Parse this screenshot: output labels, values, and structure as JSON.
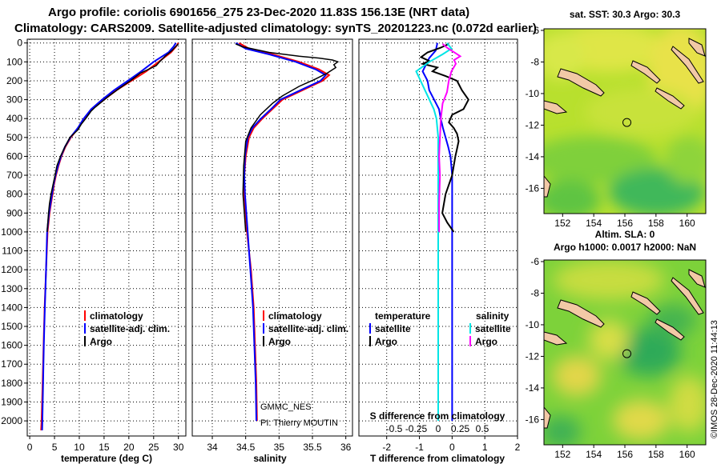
{
  "title_line1": "Argo profile: coriolis 6901656_275 23-Dec-2020 11.83S 156.13E (NRT data)",
  "title_line2": "Climatology: CARS2009. Satellite-adjusted climatology: synTS_20201223.nc (0.072d earlier)",
  "credit": "©IMOS 28-Dec-2020 11:44:13",
  "colors": {
    "climatology": "#ff0000",
    "satellite": "#0000ff",
    "argo": "#000000",
    "salinity_satellite": "#00e5e5",
    "salinity_argo": "#ff00ff"
  },
  "chart_data": [
    {
      "type": "line",
      "name": "temperature-profile",
      "xlabel": "temperature (deg C)",
      "ylabel": "depth",
      "xlim": [
        -0.5,
        31.5
      ],
      "ylim": [
        2080,
        -20
      ],
      "x_ticks": [
        0,
        5,
        10,
        15,
        20,
        25,
        30
      ],
      "x_tick_labels": [
        "0",
        "5",
        "10",
        "15",
        "20",
        "25",
        "30"
      ],
      "y_ticks": [
        0,
        100,
        200,
        300,
        400,
        500,
        600,
        700,
        800,
        900,
        1000,
        1100,
        1200,
        1300,
        1400,
        1500,
        1600,
        1700,
        1800,
        1900,
        2000
      ],
      "y_tick_labels": [
        "0",
        "100",
        "200",
        "300",
        "400",
        "500",
        "600",
        "700",
        "800",
        "900",
        "1000",
        "1100",
        "1200",
        "1300",
        "1400",
        "1500",
        "1600",
        "1700",
        "1800",
        "1900",
        "2000"
      ],
      "grid": true,
      "legend": [
        "climatology",
        "satellite-adj. clim.",
        "Argo"
      ],
      "series": [
        {
          "name": "climatology",
          "x": [
            30.0,
            29.5,
            28.5,
            26.0,
            23.5,
            20.5,
            17.5,
            15.0,
            12.6,
            11.0,
            9.8,
            8.3,
            7.2,
            6.4,
            5.8,
            5.3,
            4.9,
            4.6,
            4.3,
            4.0,
            3.8,
            3.6,
            3.3,
            3.0,
            2.8,
            2.6,
            2.4,
            2.3
          ],
          "y": [
            0,
            20,
            50,
            100,
            150,
            200,
            250,
            300,
            350,
            400,
            450,
            500,
            550,
            600,
            650,
            700,
            750,
            800,
            850,
            900,
            950,
            1000,
            1200,
            1400,
            1600,
            1800,
            2000,
            2050
          ]
        },
        {
          "name": "satellite-adj. clim.",
          "x": [
            29.5,
            29.0,
            28.0,
            25.0,
            22.5,
            19.8,
            17.0,
            14.6,
            12.4,
            10.9,
            9.7,
            8.2,
            7.1,
            6.3,
            5.7,
            5.2,
            4.8,
            4.5,
            4.2,
            3.9,
            3.7,
            3.5,
            3.3,
            3.05,
            2.85,
            2.7,
            2.55,
            2.5
          ],
          "y": [
            0,
            20,
            50,
            100,
            150,
            200,
            250,
            300,
            350,
            400,
            450,
            500,
            550,
            600,
            650,
            700,
            750,
            800,
            850,
            900,
            950,
            1000,
            1200,
            1400,
            1600,
            1800,
            2000,
            2050
          ]
        },
        {
          "name": "Argo",
          "x": [
            30.0,
            29.4,
            28.7,
            27.3,
            26.2,
            25.5,
            23.9,
            22.3,
            20.3,
            18.1,
            16.0,
            14.6,
            13.2,
            12.4,
            11.3,
            10.4,
            9.7,
            8.1,
            7.1,
            6.2,
            5.5,
            5.1,
            4.7,
            4.3,
            4.0,
            3.8,
            3.5
          ],
          "y": [
            5,
            20,
            40,
            70,
            100,
            120,
            140,
            160,
            200,
            240,
            280,
            310,
            340,
            360,
            400,
            430,
            460,
            500,
            550,
            600,
            650,
            700,
            750,
            800,
            850,
            900,
            1000
          ]
        }
      ]
    },
    {
      "type": "line",
      "name": "salinity-profile",
      "xlabel": "salinity",
      "ylabel": "depth",
      "xlim": [
        33.7,
        36.1
      ],
      "ylim": [
        2080,
        -20
      ],
      "x_ticks": [
        34,
        34.5,
        35,
        35.5,
        36
      ],
      "x_tick_labels": [
        "34",
        "34.5",
        "35",
        "35.5",
        "36"
      ],
      "grid": true,
      "legend": [
        "climatology",
        "satellite-adj. clim.",
        "Argo"
      ],
      "annotations": [
        "GMMC_NES",
        "PI: Thierry MOUTIN"
      ],
      "series": [
        {
          "name": "climatology",
          "x": [
            34.4,
            34.55,
            34.9,
            35.3,
            35.6,
            35.75,
            35.65,
            35.35,
            35.05,
            34.9,
            34.75,
            34.62,
            34.55,
            34.5,
            34.48,
            34.48,
            34.5,
            34.52,
            34.55,
            34.58,
            34.6,
            34.62,
            34.64,
            34.66,
            34.67
          ],
          "y": [
            0,
            30,
            60,
            100,
            140,
            170,
            200,
            250,
            300,
            350,
            400,
            450,
            500,
            600,
            700,
            800,
            900,
            1000,
            1100,
            1200,
            1300,
            1400,
            1600,
            1800,
            2000
          ]
        },
        {
          "name": "satellite-adj. clim.",
          "x": [
            34.35,
            34.5,
            34.85,
            35.25,
            35.55,
            35.7,
            35.62,
            35.32,
            35.02,
            34.88,
            34.73,
            34.6,
            34.53,
            34.49,
            34.48,
            34.49,
            34.51,
            34.53,
            34.55,
            34.57,
            34.59,
            34.61,
            34.63,
            34.65,
            34.66
          ],
          "y": [
            0,
            30,
            60,
            100,
            140,
            170,
            200,
            250,
            300,
            350,
            400,
            450,
            500,
            600,
            700,
            800,
            900,
            1000,
            1100,
            1200,
            1300,
            1400,
            1600,
            1800,
            2000
          ]
        },
        {
          "name": "Argo",
          "x": [
            34.35,
            34.45,
            34.85,
            35.3,
            35.6,
            35.8,
            35.88,
            35.82,
            35.85,
            35.72,
            35.55,
            35.3,
            35.05,
            34.9,
            34.72,
            34.58,
            34.5,
            34.47,
            34.46,
            34.5
          ],
          "y": [
            5,
            20,
            50,
            70,
            80,
            90,
            100,
            115,
            130,
            160,
            190,
            230,
            280,
            320,
            380,
            450,
            520,
            650,
            800,
            1000
          ]
        }
      ]
    },
    {
      "type": "line",
      "name": "difference-profile",
      "xlabel": "T difference from climatology",
      "xlabel_top": "S difference from climatology",
      "ylabel": "depth",
      "xlim": [
        -2.85,
        2.0
      ],
      "ylim": [
        2080,
        -20
      ],
      "x_ticks": [
        -2,
        -1,
        0,
        1,
        2
      ],
      "x_tick_labels": [
        "-2",
        "-1",
        "0",
        "1",
        "2"
      ],
      "x2_ticks": [
        -0.5,
        -0.25,
        0,
        0.25,
        0.5
      ],
      "x2_tick_labels": [
        "-0.5",
        "-0.25",
        "0",
        "0.25",
        "0.5"
      ],
      "grid": true,
      "legend_temperature": {
        "title": "temperature",
        "entries": [
          "satellite",
          "Argo"
        ]
      },
      "legend_salinity": {
        "title": "salinity",
        "entries": [
          "satellite",
          "Argo"
        ]
      },
      "series": [
        {
          "name": "temperature satellite",
          "x": [
            -0.45,
            -0.5,
            -0.7,
            -0.9,
            -0.75,
            -0.7,
            -0.55,
            -0.4,
            -0.35,
            -0.28,
            -0.2,
            -0.12,
            -0.05,
            0,
            0,
            0,
            0,
            0,
            0,
            0,
            0
          ],
          "y": [
            0,
            40,
            80,
            150,
            200,
            250,
            300,
            350,
            400,
            450,
            500,
            550,
            600,
            700,
            800,
            900,
            1000,
            1200,
            1500,
            1800,
            2000
          ]
        },
        {
          "name": "temperature Argo",
          "x": [
            -0.1,
            -0.35,
            -0.75,
            -0.95,
            -0.7,
            -0.9,
            -0.45,
            -0.6,
            -0.2,
            0.15,
            0.3,
            0.5,
            0.35,
            0.0,
            -0.1,
            0.05,
            0.15,
            0.2,
            0.15,
            0.1,
            0.0,
            -0.2,
            -0.3,
            -0.15,
            0.05
          ],
          "y": [
            5,
            25,
            50,
            75,
            95,
            110,
            130,
            150,
            175,
            200,
            250,
            300,
            350,
            380,
            420,
            450,
            480,
            520,
            560,
            600,
            700,
            800,
            900,
            950,
            1000
          ]
        },
        {
          "name": "salinity satellite",
          "x": [
            0.1,
            0.15,
            0.05,
            -0.1,
            -0.25,
            -0.2,
            -0.15,
            -0.1,
            -0.05,
            -0.02,
            0,
            0,
            0,
            0,
            0,
            0,
            0,
            0
          ],
          "y": [
            0,
            30,
            60,
            100,
            150,
            200,
            250,
            300,
            350,
            400,
            500,
            600,
            800,
            1000,
            1200,
            1500,
            1800,
            2000
          ]
        },
        {
          "name": "salinity Argo",
          "x": [
            0.05,
            0.1,
            0.15,
            0.2,
            0.25,
            0.18,
            0.2,
            0.15,
            0.12,
            0.1,
            0.05,
            0.03,
            0.02,
            0.01,
            0.02,
            0.01,
            0.01
          ],
          "y": [
            5,
            25,
            40,
            55,
            70,
            90,
            110,
            150,
            200,
            260,
            320,
            400,
            500,
            600,
            700,
            850,
            1000
          ]
        }
      ]
    },
    {
      "type": "heatmap",
      "name": "sst-map",
      "title": "sat. SST: 30.3 Argo: 30.3",
      "xlim": [
        150.8,
        161.2
      ],
      "ylim": [
        -17.6,
        -5.9
      ],
      "x_ticks": [
        152,
        154,
        156,
        158,
        160
      ],
      "x_tick_labels": [
        "152",
        "154",
        "156",
        "158",
        "160"
      ],
      "y_ticks": [
        -6,
        -8,
        -10,
        -12,
        -14,
        -16
      ],
      "y_tick_labels": [
        "-6",
        "-8",
        "-10",
        "-12",
        "-14",
        "-16"
      ],
      "float_position": [
        156.13,
        -11.83
      ]
    },
    {
      "type": "heatmap",
      "name": "sla-map",
      "title": "Altim. SLA: 0",
      "subtitle": "Argo h1000: 0.0017 h2000: NaN",
      "xlim": [
        150.8,
        161.2
      ],
      "ylim": [
        -17.6,
        -5.9
      ],
      "x_ticks": [
        152,
        154,
        156,
        158,
        160
      ],
      "x_tick_labels": [
        "152",
        "154",
        "156",
        "158",
        "160"
      ],
      "y_ticks": [
        -6,
        -8,
        -10,
        -12,
        -14,
        -16
      ],
      "y_tick_labels": [
        "-6",
        "-8",
        "-10",
        "-12",
        "-14",
        "-16"
      ],
      "float_position": [
        156.13,
        -11.83
      ]
    }
  ]
}
